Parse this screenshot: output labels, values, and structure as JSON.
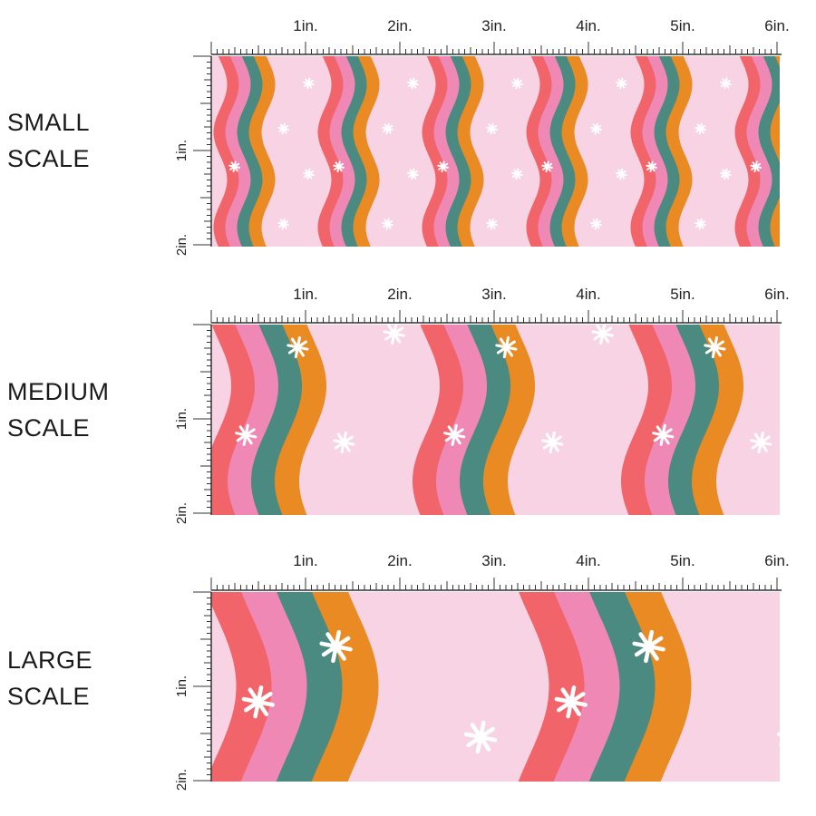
{
  "sections": [
    {
      "label_line1": "SMALL",
      "label_line2": "SCALE",
      "scale": 0.5
    },
    {
      "label_line1": "MEDIUM",
      "label_line2": "SCALE",
      "scale": 1
    },
    {
      "label_line1": "LARGE",
      "label_line2": "SCALE",
      "scale": 1.5
    }
  ],
  "ruler": {
    "horizontal_labels": [
      "1in.",
      "2in.",
      "3in.",
      "4in.",
      "5in.",
      "6in."
    ],
    "vertical_labels": [
      "1in.",
      "2in."
    ]
  },
  "colors": {
    "background": "#f8d3e3",
    "coral": "#f0646a",
    "pink": "#f088b6",
    "teal": "#4a8a80",
    "orange": "#ea8a22",
    "star": "#ffffff",
    "ruler": "#333333"
  },
  "pattern": {
    "stripes": [
      "coral",
      "pink",
      "teal",
      "orange"
    ],
    "icon": "sparkle-star-icon"
  }
}
